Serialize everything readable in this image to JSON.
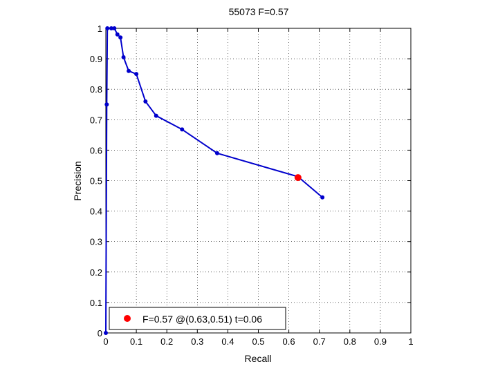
{
  "chart_data": {
    "type": "line",
    "title": "55073 F=0.57",
    "xlabel": "Recall",
    "ylabel": "Precision",
    "xlim": [
      0,
      1
    ],
    "ylim": [
      0,
      1
    ],
    "grid": true,
    "x_ticks": [
      "0",
      "0.1",
      "0.2",
      "0.3",
      "0.4",
      "0.5",
      "0.6",
      "0.7",
      "0.8",
      "0.9",
      "1"
    ],
    "y_ticks": [
      "0",
      "0.1",
      "0.2",
      "0.3",
      "0.4",
      "0.5",
      "0.6",
      "0.7",
      "0.8",
      "0.9",
      "1"
    ],
    "legend_position": "bottom-left",
    "series": [
      {
        "color": "#0000cc",
        "x": [
          0.0,
          0.003,
          0.005,
          0.018,
          0.028,
          0.038,
          0.048,
          0.058,
          0.075,
          0.1,
          0.13,
          0.165,
          0.25,
          0.365,
          0.63,
          0.71
        ],
        "y": [
          0.0,
          0.75,
          1.0,
          1.0,
          1.0,
          0.98,
          0.97,
          0.905,
          0.86,
          0.85,
          0.76,
          0.713,
          0.668,
          0.59,
          0.513,
          0.445
        ]
      }
    ],
    "best_point": {
      "color": "#ff0000",
      "x": 0.63,
      "y": 0.51,
      "legend_label": "F=0.57 @(0.63,0.51) t=0.06"
    }
  }
}
